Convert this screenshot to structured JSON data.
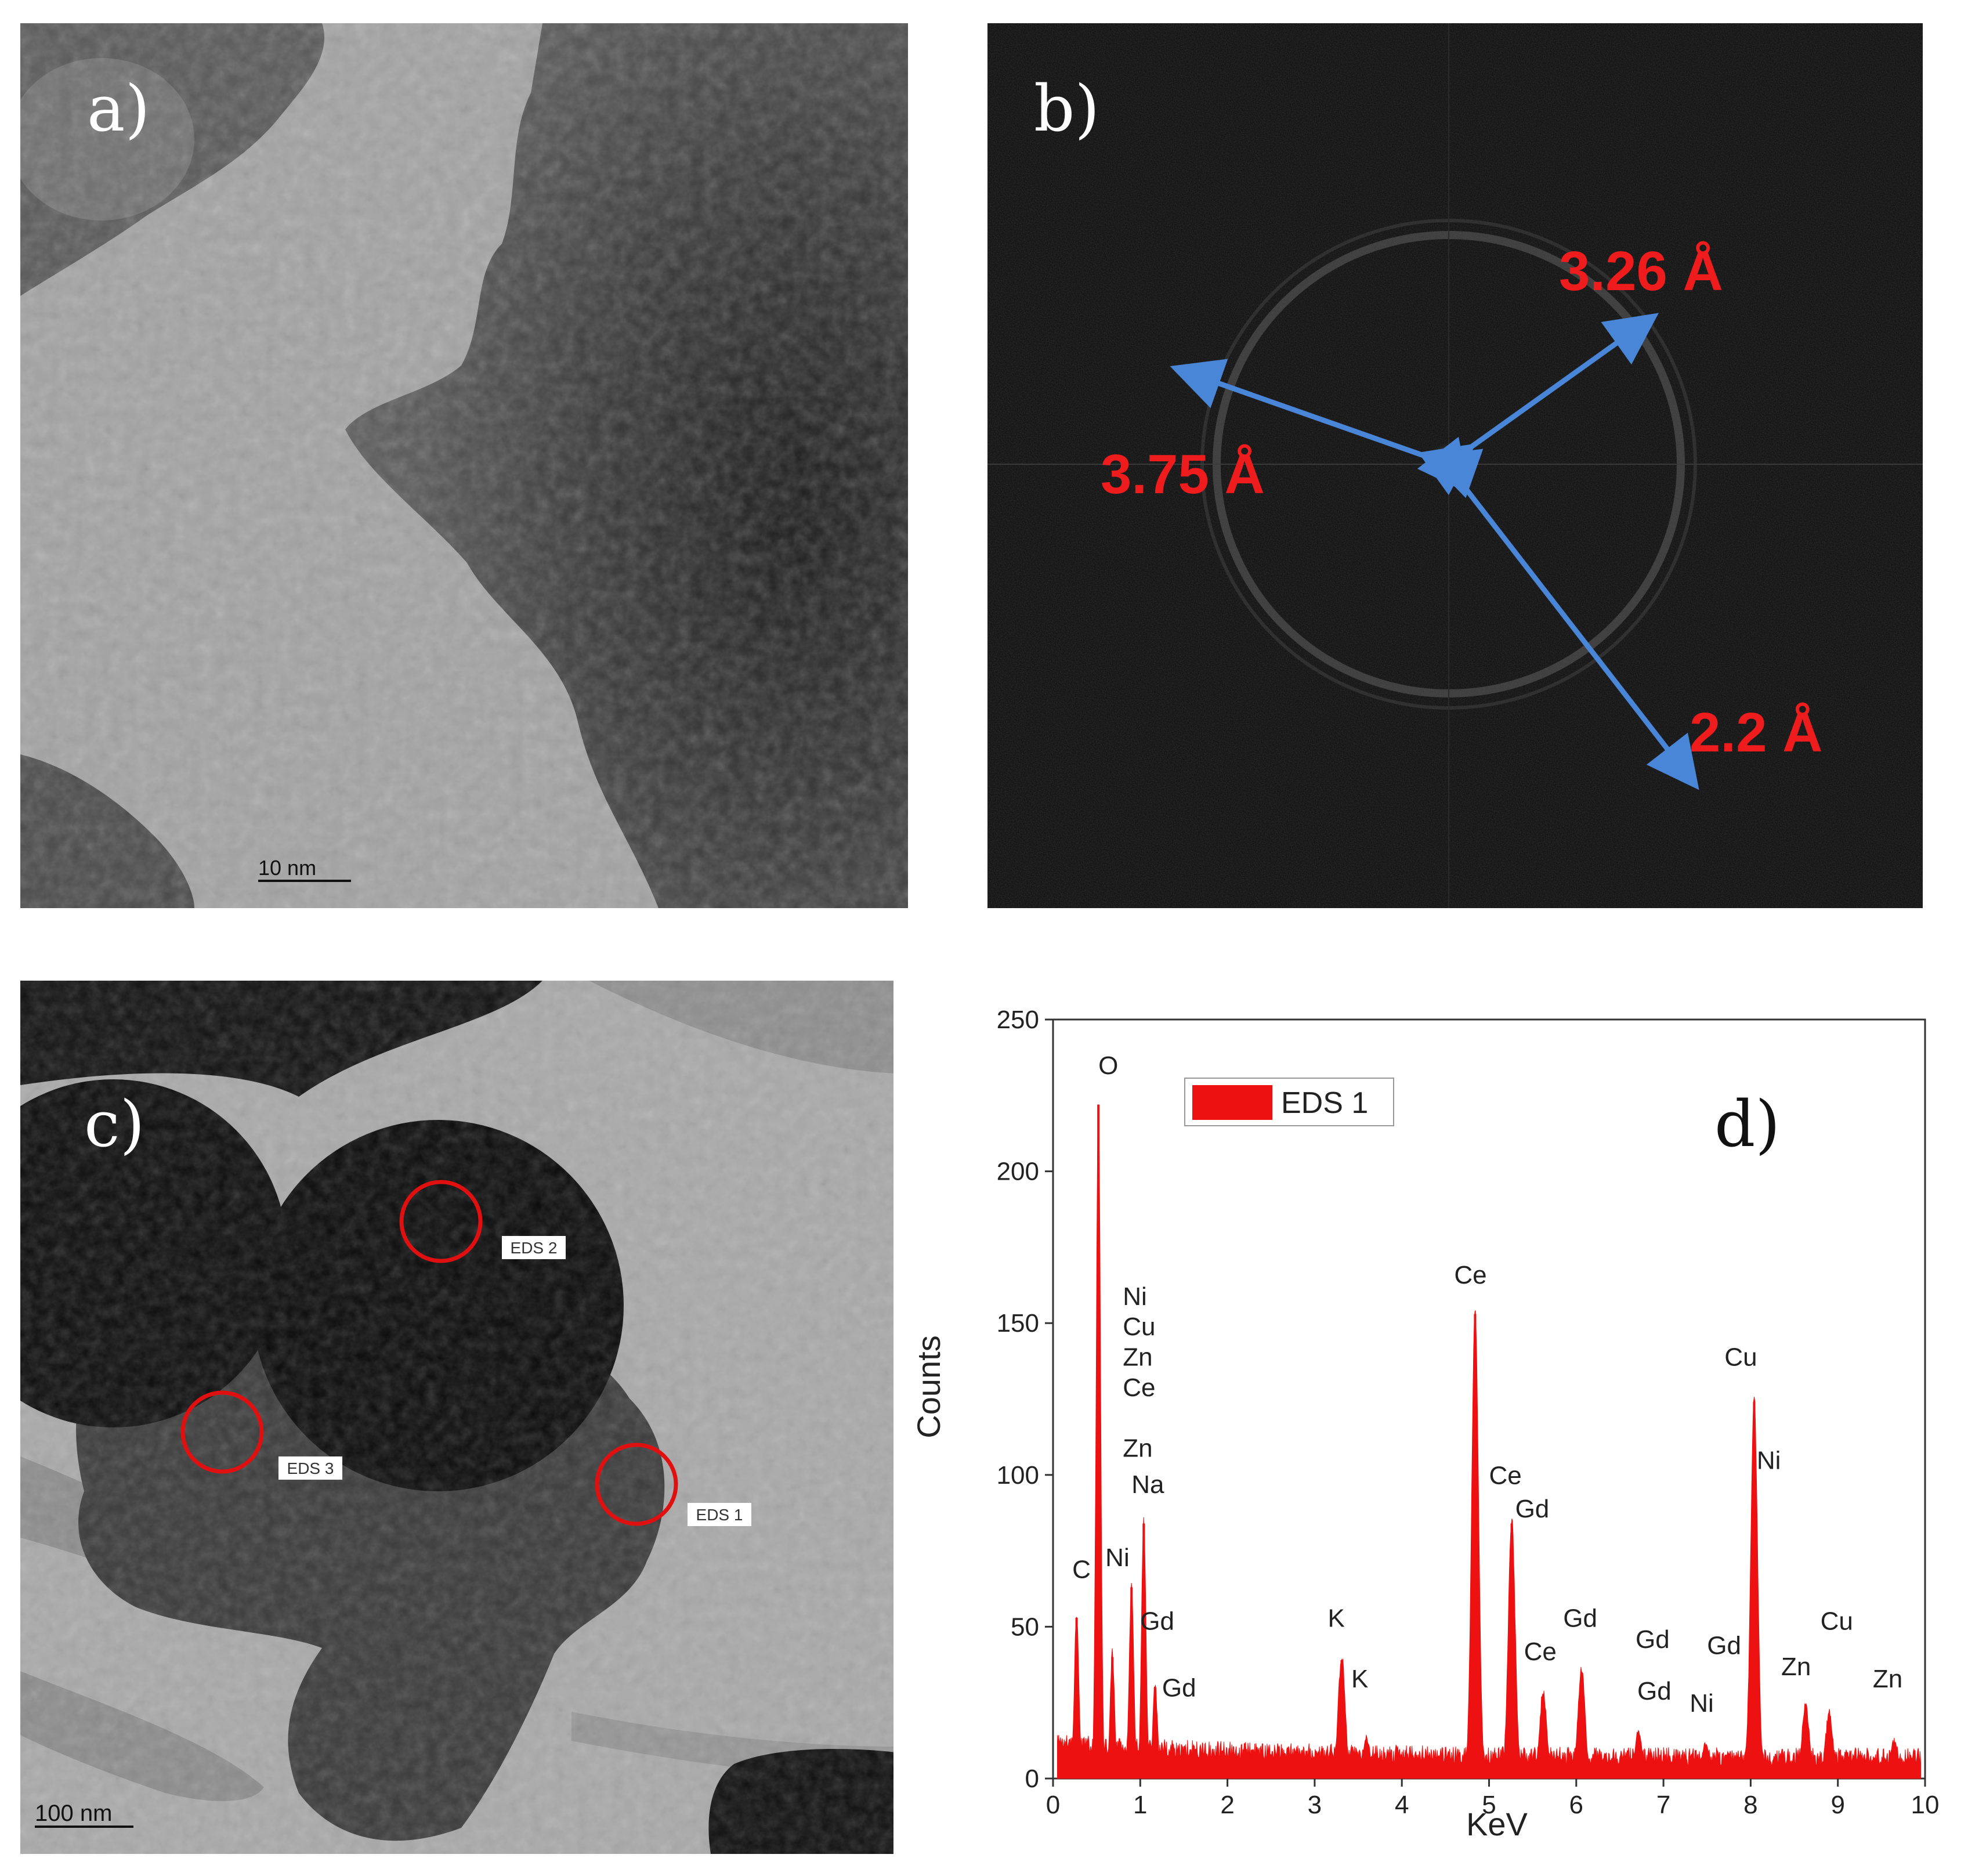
{
  "panel_a": {
    "letter": "a)",
    "scale_bar": "10 nm"
  },
  "panel_b": {
    "letter": "b)",
    "annotations": [
      "3.26 Å",
      "3.75 Å",
      "2.2 Å"
    ]
  },
  "panel_c": {
    "letter": "c)",
    "scale_bar": "100 nm",
    "eds_labels": [
      "EDS 2",
      "EDS 3",
      "EDS 1"
    ]
  },
  "panel_d": {
    "letter": "d)"
  },
  "colors": {
    "spectrum": "#ee1111",
    "annotation": "#ee1c1c",
    "arrow": "#4a86d8",
    "circle": "#e01010"
  },
  "chart_data": {
    "type": "area",
    "xlabel": "KeV",
    "ylabel": "Counts",
    "xlim": [
      0,
      10
    ],
    "ylim": [
      0,
      250
    ],
    "xticks": [
      0,
      1,
      2,
      3,
      4,
      5,
      6,
      7,
      8,
      9,
      10
    ],
    "yticks": [
      0,
      50,
      100,
      150,
      200,
      250
    ],
    "legend": "top-left",
    "series": [
      {
        "name": "EDS 1",
        "peaks": [
          {
            "x": 0.27,
            "y": 53
          },
          {
            "x": 0.52,
            "y": 222
          },
          {
            "x": 0.68,
            "y": 40
          },
          {
            "x": 0.9,
            "y": 63
          },
          {
            "x": 1.04,
            "y": 84
          },
          {
            "x": 1.17,
            "y": 30
          },
          {
            "x": 3.31,
            "y": 39
          },
          {
            "x": 3.59,
            "y": 12
          },
          {
            "x": 4.84,
            "y": 153
          },
          {
            "x": 5.26,
            "y": 84
          },
          {
            "x": 5.62,
            "y": 27
          },
          {
            "x": 6.06,
            "y": 35
          },
          {
            "x": 6.71,
            "y": 14
          },
          {
            "x": 7.48,
            "y": 10
          },
          {
            "x": 8.04,
            "y": 124
          },
          {
            "x": 8.63,
            "y": 23
          },
          {
            "x": 8.9,
            "y": 20
          },
          {
            "x": 9.65,
            "y": 11
          }
        ]
      }
    ],
    "peak_labels": [
      {
        "text": "O",
        "x": 0.52,
        "y": 232
      },
      {
        "text": "C",
        "x": 0.22,
        "y": 66
      },
      {
        "text": "Ni",
        "x": 0.8,
        "y": 156
      },
      {
        "text": "Cu",
        "x": 0.8,
        "y": 146
      },
      {
        "text": "Zn",
        "x": 0.8,
        "y": 136
      },
      {
        "text": "Ce",
        "x": 0.8,
        "y": 126
      },
      {
        "text": "Zn",
        "x": 0.8,
        "y": 106
      },
      {
        "text": "Na",
        "x": 0.9,
        "y": 94
      },
      {
        "text": "Ni",
        "x": 0.6,
        "y": 70
      },
      {
        "text": "Gd",
        "x": 1.0,
        "y": 49
      },
      {
        "text": "Gd",
        "x": 1.25,
        "y": 27
      },
      {
        "text": "K",
        "x": 3.15,
        "y": 50
      },
      {
        "text": "K",
        "x": 3.42,
        "y": 30
      },
      {
        "text": "Ce",
        "x": 4.6,
        "y": 163
      },
      {
        "text": "Ce",
        "x": 5.0,
        "y": 97
      },
      {
        "text": "Gd",
        "x": 5.3,
        "y": 86
      },
      {
        "text": "Ce",
        "x": 5.4,
        "y": 39
      },
      {
        "text": "Gd",
        "x": 5.85,
        "y": 50
      },
      {
        "text": "Gd",
        "x": 6.68,
        "y": 43
      },
      {
        "text": "Gd",
        "x": 6.7,
        "y": 26
      },
      {
        "text": "Ni",
        "x": 7.3,
        "y": 22
      },
      {
        "text": "Gd",
        "x": 7.5,
        "y": 41
      },
      {
        "text": "Cu",
        "x": 7.7,
        "y": 136
      },
      {
        "text": "Ni",
        "x": 8.07,
        "y": 102
      },
      {
        "text": "Cu",
        "x": 8.8,
        "y": 49
      },
      {
        "text": "Zn",
        "x": 8.35,
        "y": 34
      },
      {
        "text": "Zn",
        "x": 9.4,
        "y": 30
      }
    ]
  }
}
